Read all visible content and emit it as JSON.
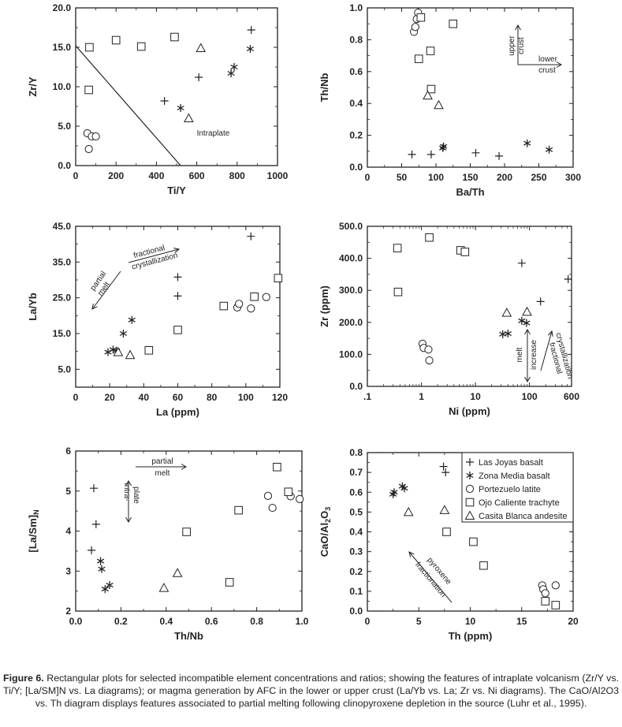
{
  "symbols": {
    "las_joyas": "plus",
    "zona_media": "asterisk",
    "portezuelo": "circle",
    "ojo_caliente": "square",
    "casita_blanca": "triangle"
  },
  "legend": {
    "items": [
      {
        "key": "las_joyas",
        "label": "Las Joyas basalt"
      },
      {
        "key": "zona_media",
        "label": "Zona Media basalt"
      },
      {
        "key": "portezuelo",
        "label": "Portezuelo latite"
      },
      {
        "key": "ojo_caliente",
        "label": "Ojo Caliente trachyte"
      },
      {
        "key": "casita_blanca",
        "label": "Casita Blanca andesite"
      }
    ]
  },
  "caption": {
    "figure_label": "Figure 6.",
    "text": " Rectangular plots for selected incompatible element concentrations and ratios; showing the features of intraplate volcanism (Zr/Y vs. Ti/Y; [La/SM]N vs. La diagrams); or magma generation by AFC in the lower or upper crust (La/Yb vs. La; Zr vs. Ni diagrams). The CaO/Al2O3 vs. Th diagram displays features associated to partial melting following clinopyroxene depletion in the source (Luhr et al., 1995)."
  },
  "chart_data": [
    {
      "id": "zr_y_ti_y",
      "type": "scatter",
      "xlabel": "Ti/Y",
      "ylabel": "Zr/Y",
      "xlim": [
        0,
        1000
      ],
      "ylim": [
        0,
        20
      ],
      "xticks": [
        0,
        200,
        400,
        600,
        800,
        1000
      ],
      "xtick_labels": [
        "0",
        "200",
        "400",
        "600",
        "800",
        "1000"
      ],
      "yticks": [
        0,
        5,
        10,
        15,
        20
      ],
      "ytick_labels": [
        "0.0",
        "5.0",
        "10.0",
        "15.0",
        "20.0"
      ],
      "lines": [
        {
          "x": [
            0,
            520
          ],
          "y": [
            15.2,
            0
          ]
        }
      ],
      "annotations": [
        {
          "text": "Intraplate",
          "x": 600,
          "y": 3.8
        }
      ],
      "series": [
        {
          "key": "las_joyas",
          "x": [
            440,
            610,
            870
          ],
          "y": [
            8.2,
            11.2,
            17.2
          ]
        },
        {
          "key": "zona_media",
          "x": [
            520,
            770,
            785,
            865
          ],
          "y": [
            7.3,
            11.7,
            12.5,
            14.8
          ]
        },
        {
          "key": "portezuelo",
          "x": [
            58,
            65,
            80,
            100
          ],
          "y": [
            4.1,
            2.1,
            3.7,
            3.7
          ]
        },
        {
          "key": "ojo_caliente",
          "x": [
            65,
            68,
            200,
            325,
            490
          ],
          "y": [
            9.6,
            15.0,
            15.9,
            15.1,
            16.3
          ]
        },
        {
          "key": "casita_blanca",
          "x": [
            560,
            620
          ],
          "y": [
            6.0,
            14.9
          ]
        }
      ]
    },
    {
      "id": "th_nb_ba_th",
      "type": "scatter",
      "xlabel": "Ba/Th",
      "ylabel": "Th/Nb",
      "xlim": [
        0,
        300
      ],
      "ylim": [
        0,
        1.0
      ],
      "xticks": [
        0,
        50,
        100,
        150,
        200,
        250,
        300
      ],
      "xtick_labels": [
        "0",
        "50",
        "100",
        "150",
        "200",
        "250",
        "300"
      ],
      "yticks": [
        0,
        0.2,
        0.4,
        0.6,
        0.8,
        1.0
      ],
      "ytick_labels": [
        "0.0",
        "0.2",
        "0.4",
        "0.6",
        "0.8",
        "1.0"
      ],
      "annotations": [
        {
          "text": "upper",
          "x": 0
        },
        {
          "text": "crust",
          "x": 0
        },
        {
          "text": "lower",
          "x": 0
        },
        {
          "text": "crust",
          "x": 0
        }
      ],
      "series": [
        {
          "key": "las_joyas",
          "x": [
            65,
            93,
            158,
            192
          ],
          "y": [
            0.08,
            0.08,
            0.09,
            0.07
          ]
        },
        {
          "key": "zona_media",
          "x": [
            110,
            111,
            233,
            265
          ],
          "y": [
            0.12,
            0.13,
            0.15,
            0.11
          ]
        },
        {
          "key": "portezuelo",
          "x": [
            68,
            70,
            72,
            74
          ],
          "y": [
            0.85,
            0.88,
            0.93,
            0.97
          ]
        },
        {
          "key": "ojo_caliente",
          "x": [
            75,
            78,
            92,
            93,
            125
          ],
          "y": [
            0.68,
            0.94,
            0.73,
            0.49,
            0.9
          ]
        },
        {
          "key": "casita_blanca",
          "x": [
            88,
            104
          ],
          "y": [
            0.45,
            0.39
          ]
        }
      ]
    },
    {
      "id": "la_yb_la",
      "type": "scatter",
      "xlabel": "La (ppm)",
      "ylabel": "La/Yb",
      "xlim": [
        0,
        120
      ],
      "ylim": [
        0,
        45
      ],
      "xticks": [
        0,
        20,
        40,
        60,
        80,
        100,
        120
      ],
      "xtick_labels": [
        "0",
        "20",
        "40",
        "60",
        "80",
        "100",
        "120"
      ],
      "yticks": [
        5,
        15,
        25,
        35,
        45
      ],
      "ytick_labels": [
        "5.0",
        "15.0",
        "25.0",
        "35.0",
        "45.0"
      ],
      "annotations": [
        {
          "text": "fractional"
        },
        {
          "text": "crystallization"
        },
        {
          "text": "partial"
        },
        {
          "text": "melt"
        }
      ],
      "series": [
        {
          "key": "las_joyas",
          "x": [
            60,
            60,
            103
          ],
          "y": [
            25.5,
            30.8,
            42.2
          ]
        },
        {
          "key": "zona_media",
          "x": [
            19,
            22,
            24,
            28,
            33
          ],
          "y": [
            9.8,
            10.5,
            10.2,
            15.0,
            18.8
          ]
        },
        {
          "key": "portezuelo",
          "x": [
            95,
            96,
            103,
            112
          ],
          "y": [
            22.3,
            23.3,
            22.0,
            25.2
          ]
        },
        {
          "key": "ojo_caliente",
          "x": [
            43,
            60,
            87,
            105,
            119
          ],
          "y": [
            10.3,
            16.0,
            22.7,
            25.3,
            30.5
          ]
        },
        {
          "key": "casita_blanca",
          "x": [
            25,
            32
          ],
          "y": [
            9.8,
            9.0
          ]
        }
      ]
    },
    {
      "id": "zr_ni",
      "type": "scatter",
      "xscale": "log",
      "xlabel": "Ni (ppm)",
      "ylabel": "Zr (ppm)",
      "xlim": [
        0.1,
        600
      ],
      "ylim": [
        0,
        500
      ],
      "xticks": [
        0.1,
        1,
        10,
        100,
        600
      ],
      "xtick_labels": [
        ".1",
        "1",
        "10",
        "100",
        "600"
      ],
      "yticks": [
        0,
        100,
        200,
        300,
        400,
        500
      ],
      "ytick_labels": [
        "0.0",
        "100.0",
        "200.0",
        "300.0",
        "400.0",
        "500.0"
      ],
      "annotations": [
        {
          "text": "melt"
        },
        {
          "text": "increase"
        },
        {
          "text": "fractional"
        },
        {
          "text": "crystallization"
        }
      ],
      "series": [
        {
          "key": "las_joyas",
          "x": [
            72,
            160,
            520
          ],
          "y": [
            385,
            265,
            335
          ]
        },
        {
          "key": "zona_media",
          "x": [
            32,
            40,
            72,
            88
          ],
          "y": [
            163,
            165,
            205,
            198
          ]
        },
        {
          "key": "portezuelo",
          "x": [
            1.05,
            1.1,
            1.35,
            1.4
          ],
          "y": [
            133,
            120,
            115,
            81
          ]
        },
        {
          "key": "ojo_caliente",
          "x": [
            0.36,
            0.37,
            1.4,
            5.3,
            6.4
          ],
          "y": [
            432,
            295,
            465,
            425,
            420
          ]
        },
        {
          "key": "casita_blanca",
          "x": [
            38,
            90
          ],
          "y": [
            230,
            233
          ]
        }
      ]
    },
    {
      "id": "la_sm_th_nb",
      "type": "scatter",
      "xlabel": "Th/Nb",
      "ylabel": "[La/Sm]N",
      "xlim": [
        0,
        1.0
      ],
      "ylim": [
        2,
        6
      ],
      "xticks": [
        0,
        0.2,
        0.4,
        0.6,
        0.8,
        1.0
      ],
      "xtick_labels": [
        "0.0",
        "0.2",
        "0.4",
        "0.6",
        "0.8",
        "1.0"
      ],
      "yticks": [
        2,
        3,
        4,
        5,
        6
      ],
      "ytick_labels": [
        "2",
        "3",
        "4",
        "5",
        "6"
      ],
      "annotations": [
        {
          "text": "partial"
        },
        {
          "text": "melt"
        },
        {
          "text": "intra-"
        },
        {
          "text": "plate"
        }
      ],
      "series": [
        {
          "key": "las_joyas",
          "x": [
            0.07,
            0.08,
            0.09
          ],
          "y": [
            3.52,
            5.07,
            4.17
          ]
        },
        {
          "key": "zona_media",
          "x": [
            0.11,
            0.115,
            0.13,
            0.15
          ],
          "y": [
            3.25,
            3.05,
            2.55,
            2.65
          ]
        },
        {
          "key": "portezuelo",
          "x": [
            0.85,
            0.87,
            0.95,
            0.99
          ],
          "y": [
            4.88,
            4.58,
            4.87,
            4.8
          ]
        },
        {
          "key": "ojo_caliente",
          "x": [
            0.49,
            0.68,
            0.72,
            0.89,
            0.94
          ],
          "y": [
            3.98,
            2.72,
            4.52,
            5.6,
            4.98
          ]
        },
        {
          "key": "casita_blanca",
          "x": [
            0.39,
            0.45
          ],
          "y": [
            2.58,
            2.95
          ]
        }
      ]
    },
    {
      "id": "cao_al2o3_th",
      "type": "scatter",
      "xlabel": "Th (ppm)",
      "ylabel": "CaO/Al2O3",
      "xlim": [
        0,
        20
      ],
      "ylim": [
        0,
        0.8
      ],
      "xticks": [
        0,
        5,
        10,
        15,
        20
      ],
      "xtick_labels": [
        "0",
        "5",
        "10",
        "15",
        "20"
      ],
      "yticks": [
        0,
        0.1,
        0.2,
        0.3,
        0.4,
        0.5,
        0.6,
        0.7,
        0.8
      ],
      "ytick_labels": [
        "0.0",
        "0.1",
        "0.2",
        "0.3",
        "0.4",
        "0.5",
        "0.6",
        "0.7",
        "0.8"
      ],
      "annotations": [
        {
          "text": "pyroxene"
        },
        {
          "text": "fractionation"
        }
      ],
      "series": [
        {
          "key": "las_joyas",
          "x": [
            7.4,
            7.6
          ],
          "y": [
            0.73,
            0.7
          ]
        },
        {
          "key": "zona_media",
          "x": [
            2.5,
            2.6,
            3.4,
            3.6
          ],
          "y": [
            0.59,
            0.6,
            0.63,
            0.62
          ]
        },
        {
          "key": "portezuelo",
          "x": [
            17.0,
            17.1,
            17.3,
            18.3
          ],
          "y": [
            0.13,
            0.11,
            0.09,
            0.13
          ]
        },
        {
          "key": "ojo_caliente",
          "x": [
            7.7,
            10.3,
            11.3,
            17.3,
            18.3
          ],
          "y": [
            0.4,
            0.35,
            0.23,
            0.05,
            0.03
          ]
        },
        {
          "key": "casita_blanca",
          "x": [
            4.0,
            7.5
          ],
          "y": [
            0.5,
            0.51
          ]
        }
      ]
    }
  ]
}
